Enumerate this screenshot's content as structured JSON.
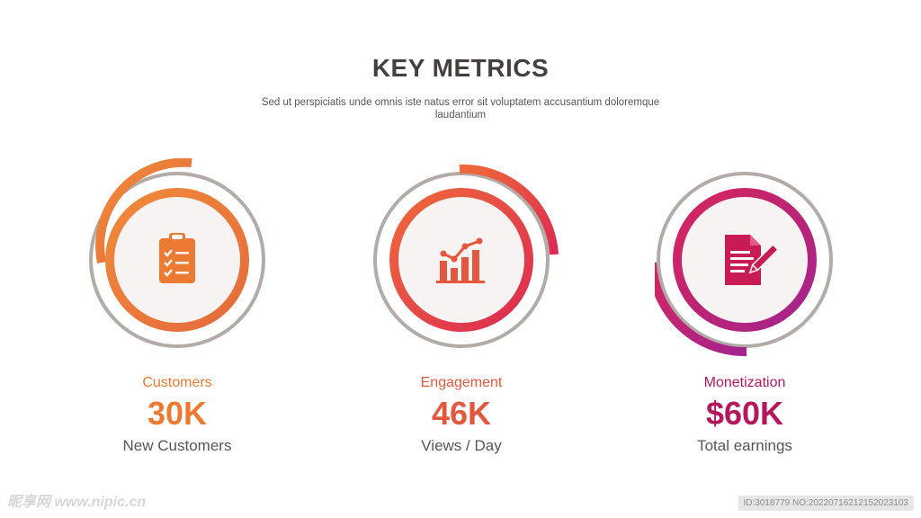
{
  "header": {
    "title": "KEY METRICS",
    "subtitle": "Sed ut perspiciatis unde omnis iste natus error sit voluptatem accusantium doloremque laudantium"
  },
  "metrics": [
    {
      "label": "Customers",
      "value": "30K",
      "caption": "New Customers",
      "icon": "clipboard-checklist-icon",
      "accent": "#ec7a33",
      "gradient": [
        "#f08a3a",
        "#e56a3c"
      ]
    },
    {
      "label": "Engagement",
      "value": "46K",
      "caption": "Views / Day",
      "icon": "bar-chart-trend-icon",
      "accent": "#e3573d",
      "gradient": [
        "#ef6a3a",
        "#dc2a52"
      ]
    },
    {
      "label": "Monetization",
      "value": "$60K",
      "caption": "Total earnings",
      "icon": "document-edit-icon",
      "accent": "#b5175e",
      "gradient": [
        "#d7255c",
        "#a3248f"
      ]
    }
  ],
  "watermark": {
    "left": "昵享网 www.nipic.cn",
    "right": "ID:3018779 NO:20220716212152023103"
  },
  "colors": {
    "title": "#454040",
    "outer_ring": "#b3aba8",
    "inner_fill": "#f7f3f2"
  }
}
